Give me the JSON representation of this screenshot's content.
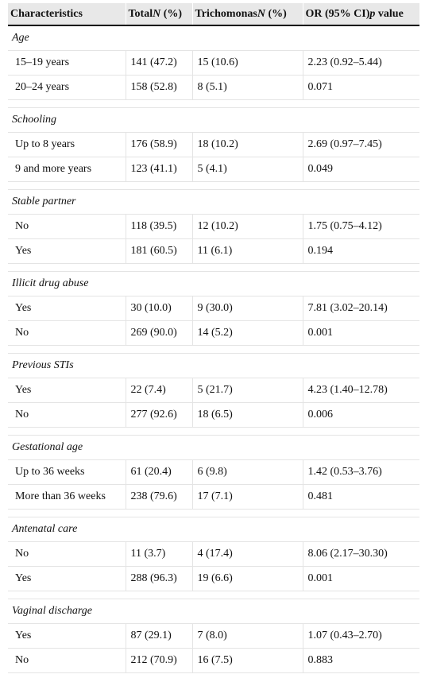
{
  "table": {
    "headers": [
      {
        "main": "Characteristics",
        "italic": ""
      },
      {
        "main": "Total",
        "italic": "N",
        "suffix": " (%)"
      },
      {
        "main": "Trichomonas",
        "italic": "N",
        "suffix": " (%)"
      },
      {
        "main": "OR (95% CI)",
        "italic": "p",
        "suffix": " value"
      }
    ],
    "groups": [
      {
        "label": "Age",
        "rows": [
          [
            "15–19 years",
            "141 (47.2)",
            "15 (10.6)",
            "2.23 (0.92–5.44)"
          ],
          [
            "20–24 years",
            "158 (52.8)",
            "8 (5.1)",
            "0.071"
          ]
        ]
      },
      {
        "label": "Schooling",
        "rows": [
          [
            "Up to 8 years",
            "176 (58.9)",
            "18 (10.2)",
            "2.69 (0.97–7.45)"
          ],
          [
            "9 and more years",
            "123 (41.1)",
            "5 (4.1)",
            "0.049"
          ]
        ]
      },
      {
        "label": "Stable partner",
        "rows": [
          [
            "No",
            "118 (39.5)",
            "12 (10.2)",
            "1.75 (0.75–4.12)"
          ],
          [
            "Yes",
            "181 (60.5)",
            "11 (6.1)",
            "0.194"
          ]
        ]
      },
      {
        "label": "Illicit drug abuse",
        "rows": [
          [
            "Yes",
            "30 (10.0)",
            "9 (30.0)",
            "7.81 (3.02–20.14)"
          ],
          [
            "No",
            "269 (90.0)",
            "14 (5.2)",
            "0.001"
          ]
        ]
      },
      {
        "label": "Previous STIs",
        "rows": [
          [
            "Yes",
            "22 (7.4)",
            "5 (21.7)",
            "4.23 (1.40–12.78)"
          ],
          [
            "No",
            "277 (92.6)",
            "18 (6.5)",
            "0.006"
          ]
        ]
      },
      {
        "label": "Gestational age",
        "rows": [
          [
            "Up to 36 weeks",
            "61 (20.4)",
            "6 (9.8)",
            "1.42 (0.53–3.76)"
          ],
          [
            "More than 36 weeks",
            "238 (79.6)",
            "17 (7.1)",
            "0.481"
          ]
        ]
      },
      {
        "label": "Antenatal care",
        "rows": [
          [
            "No",
            "11 (3.7)",
            "4 (17.4)",
            "8.06 (2.17–30.30)"
          ],
          [
            "Yes",
            "288 (96.3)",
            "19 (6.6)",
            "0.001"
          ]
        ]
      },
      {
        "label": "Vaginal discharge",
        "rows": [
          [
            "Yes",
            "87 (29.1)",
            "7 (8.0)",
            "1.07 (0.43–2.70)"
          ],
          [
            "No",
            "212 (70.9)",
            "16 (7.5)",
            "0.883"
          ]
        ]
      }
    ]
  }
}
